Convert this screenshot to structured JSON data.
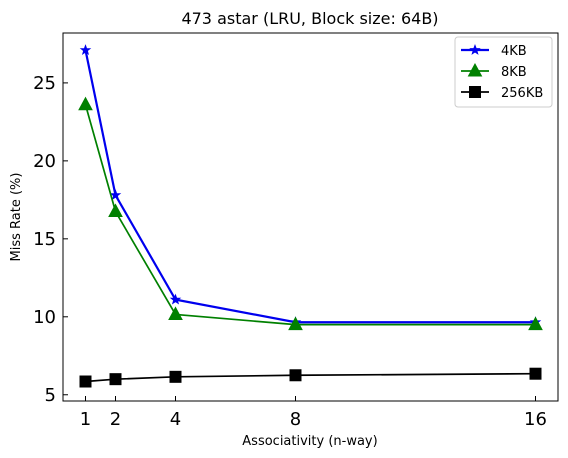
{
  "chart_data": {
    "type": "line",
    "title": "473 astar (LRU, Block size: 64B)",
    "xlabel": "Associativity (n-way)",
    "ylabel": "Miss Rate (%)",
    "x": [
      1,
      2,
      4,
      8,
      16
    ],
    "x_ticks": [
      "1",
      "2",
      "4",
      "8",
      "16"
    ],
    "y_ticks": [
      "5",
      "10",
      "15",
      "20",
      "25"
    ],
    "xlim": [
      0.25,
      16.75
    ],
    "ylim": [
      4.6,
      28.2
    ],
    "grid": false,
    "legend_position": "top-right",
    "series": [
      {
        "name": "4KB",
        "color": "#0000ee",
        "marker": "star",
        "values": [
          27.1,
          17.8,
          11.1,
          9.65,
          9.65
        ]
      },
      {
        "name": "8KB",
        "color": "#008000",
        "marker": "triangle",
        "values": [
          23.6,
          16.75,
          10.15,
          9.5,
          9.5
        ]
      },
      {
        "name": "256KB",
        "color": "#000000",
        "marker": "square",
        "values": [
          5.85,
          6.0,
          6.15,
          6.25,
          6.35
        ]
      }
    ]
  }
}
